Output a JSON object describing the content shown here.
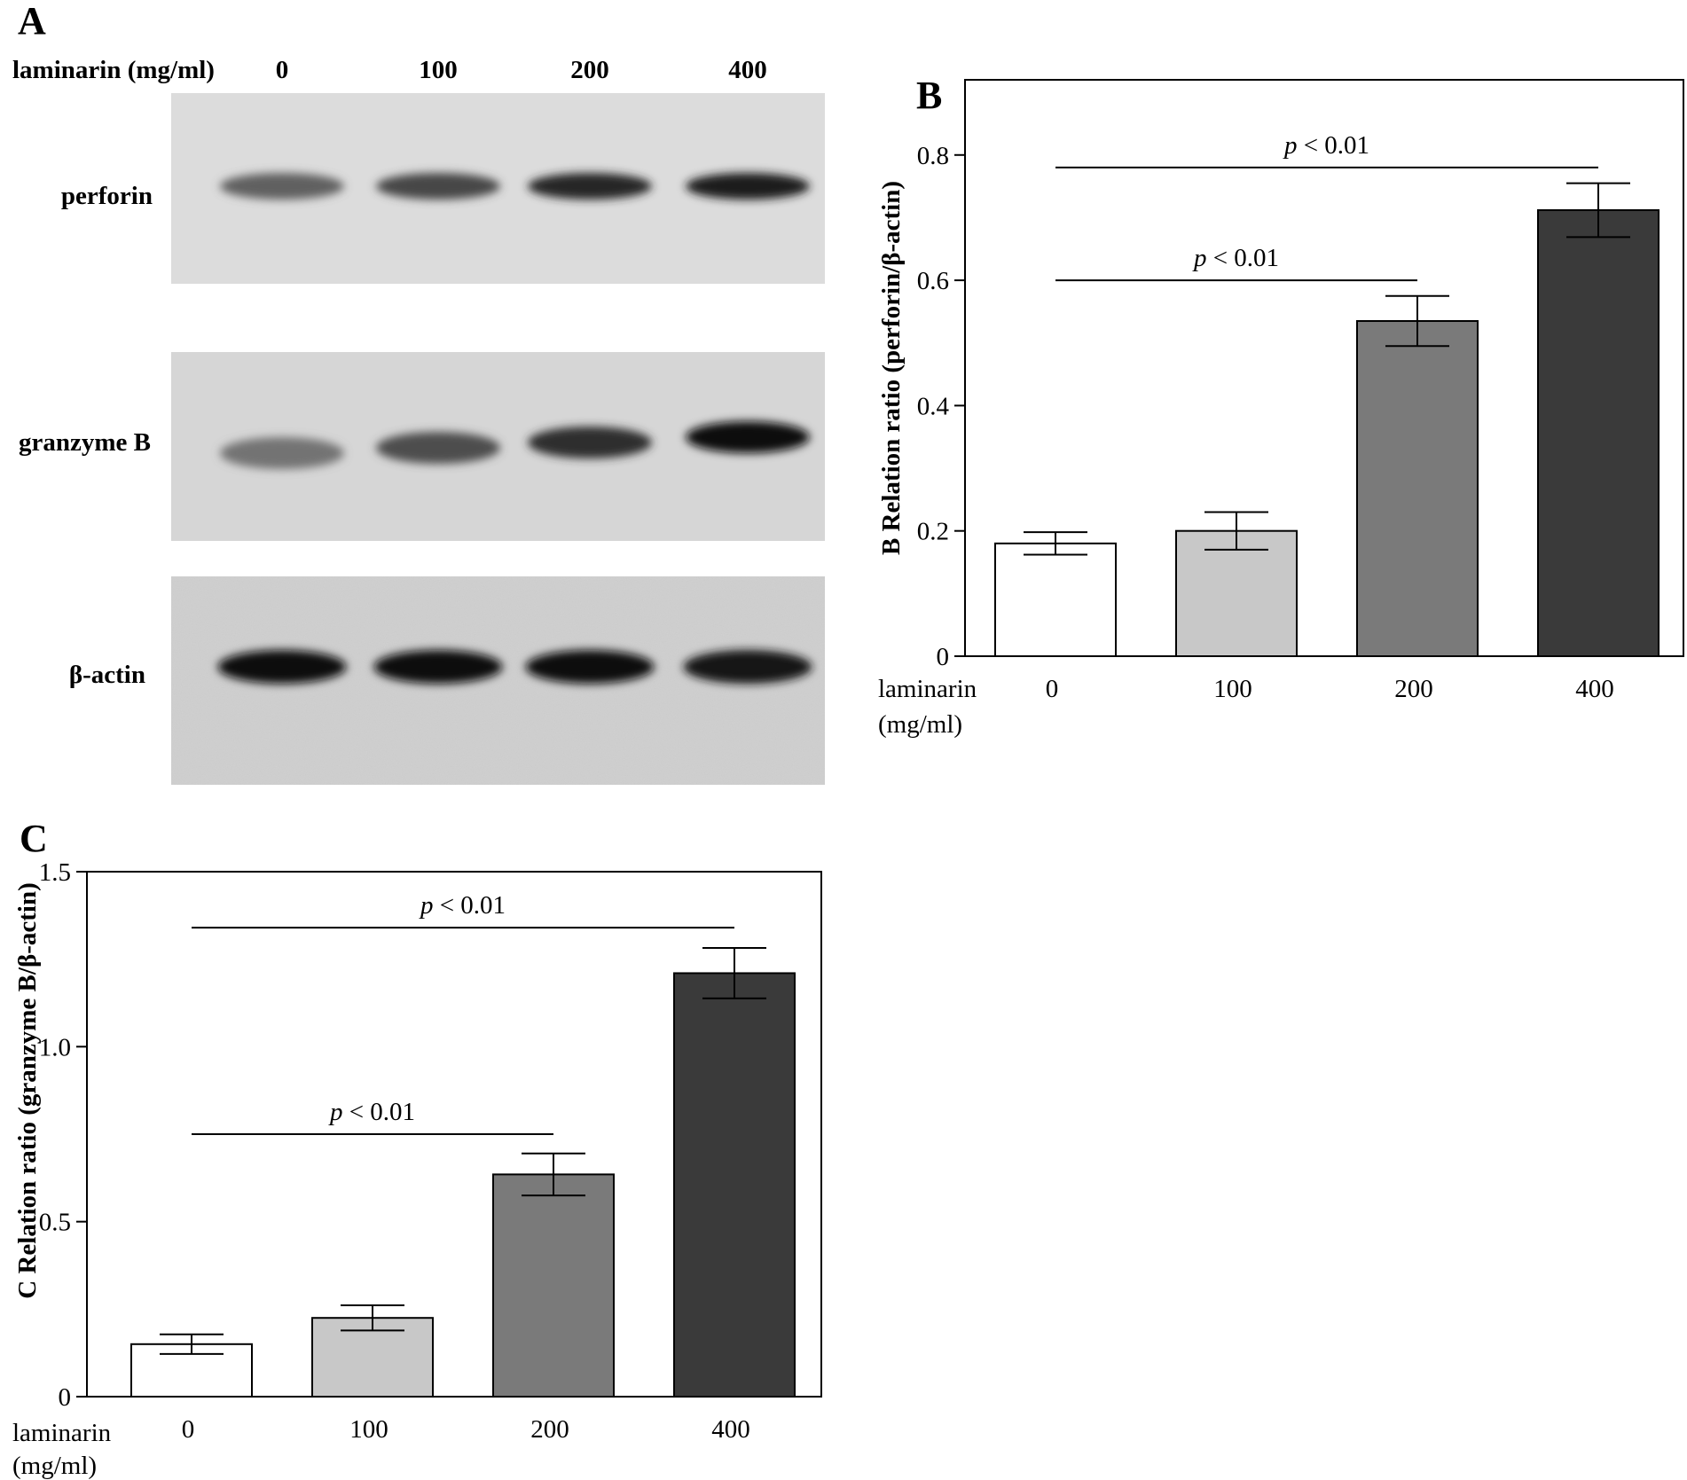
{
  "panel_a": {
    "letter": "A",
    "dose_label": "laminarin (mg/ml)",
    "lanes": [
      "0",
      "100",
      "200",
      "400"
    ],
    "rows": [
      {
        "label": "perforin",
        "intensity": [
          0.62,
          0.72,
          0.85,
          0.88
        ]
      },
      {
        "label": "granzyme B",
        "intensity": [
          0.55,
          0.7,
          0.82,
          0.95
        ]
      },
      {
        "label": "β-actin",
        "intensity": [
          0.95,
          0.95,
          0.95,
          0.93
        ]
      }
    ]
  },
  "chart_data": [
    {
      "type": "bar",
      "panel": "B",
      "ylabel": "B Relation ratio (perforin/β-actin)",
      "xlabel": [
        "laminarin",
        "(mg/ml)"
      ],
      "categories": [
        "0",
        "100",
        "200",
        "400"
      ],
      "values": [
        0.18,
        0.2,
        0.535,
        0.712
      ],
      "errors": [
        0.018,
        0.03,
        0.04,
        0.043
      ],
      "colors": [
        "#ffffff",
        "#c8c8c8",
        "#7a7a7a",
        "#3a3a3a"
      ],
      "ylim": [
        0,
        0.92
      ],
      "yticks": [
        {
          "v": 0,
          "label": "0"
        },
        {
          "v": 0.2,
          "label": "0.2"
        },
        {
          "v": 0.4,
          "label": "0.4"
        },
        {
          "v": 0.6,
          "label": "0.6"
        },
        {
          "v": 0.8,
          "label": "0.8"
        }
      ],
      "annotations": [
        {
          "from": 0,
          "to": 3,
          "y": 0.78,
          "text": "p < 0.01"
        },
        {
          "from": 0,
          "to": 2,
          "y": 0.6,
          "text": "p < 0.01"
        }
      ],
      "grid": false,
      "legend": "none"
    },
    {
      "type": "bar",
      "panel": "C",
      "ylabel": "C Relation ratio (granzyme B/β-actin)",
      "xlabel": [
        "laminarin",
        "(mg/ml)"
      ],
      "categories": [
        "0",
        "100",
        "200",
        "400"
      ],
      "values": [
        0.15,
        0.225,
        0.635,
        1.21
      ],
      "errors": [
        0.028,
        0.036,
        0.06,
        0.072
      ],
      "colors": [
        "#ffffff",
        "#c8c8c8",
        "#7a7a7a",
        "#3a3a3a"
      ],
      "ylim": [
        0,
        1.5
      ],
      "yticks": [
        {
          "v": 0,
          "label": "0"
        },
        {
          "v": 0.5,
          "label": "0.5"
        },
        {
          "v": 1.0,
          "label": "1.0"
        },
        {
          "v": 1.5,
          "label": "1.5"
        }
      ],
      "annotations": [
        {
          "from": 0,
          "to": 3,
          "y": 1.34,
          "text": "p < 0.01"
        },
        {
          "from": 0,
          "to": 2,
          "y": 0.75,
          "text": "p < 0.01"
        }
      ],
      "grid": false,
      "legend": "none"
    }
  ]
}
